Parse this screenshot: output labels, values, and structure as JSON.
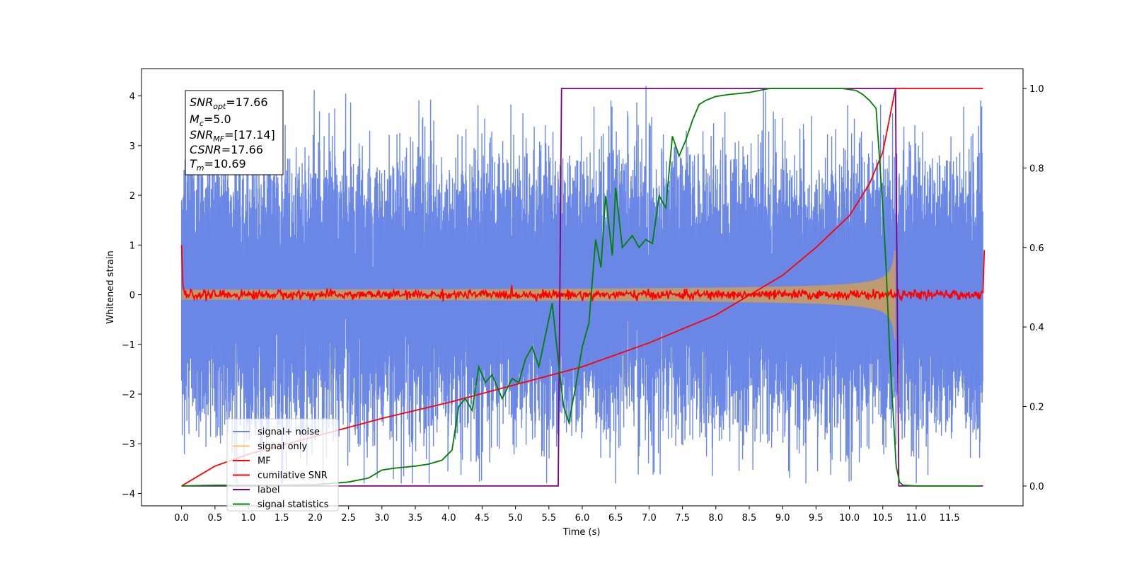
{
  "chart_data": {
    "type": "line",
    "xlabel": "Time (s)",
    "ylabel": "Whitened strain",
    "ylabel_right": "",
    "xlim": [
      -0.6,
      12.6
    ],
    "ylim": [
      -4.25,
      4.55
    ],
    "ylim_right": [
      -0.05,
      1.05
    ],
    "x_ticks": [
      "0.0",
      "0.5",
      "1.0",
      "1.5",
      "2.0",
      "2.5",
      "3.0",
      "3.5",
      "4.0",
      "4.5",
      "5.0",
      "5.5",
      "6.0",
      "6.5",
      "7.0",
      "7.5",
      "8.0",
      "8.5",
      "9.0",
      "9.5",
      "10.0",
      "10.5",
      "11.0",
      "11.5"
    ],
    "y_ticks": [
      "4",
      "3",
      "2",
      "1",
      "0",
      "−1",
      "−2",
      "−3",
      "−4"
    ],
    "y_ticks_right": [
      "1.0",
      "0.8",
      "0.6",
      "0.4",
      "0.2",
      "0.0"
    ],
    "grid": false,
    "legend_position": "lower-left",
    "annotation": {
      "snr_opt": {
        "name": "SNR",
        "sub": "opt",
        "value": "=17.66"
      },
      "mc": {
        "name": "M",
        "sub": "c",
        "value": "=5.0"
      },
      "snr_mf": {
        "name": "SNR",
        "sub": "MF",
        "value": "=[17.14]"
      },
      "csnr": {
        "name": "CSNR",
        "value": "=17.66"
      },
      "tm": {
        "name": "T",
        "sub": "m",
        "value": "=10.69"
      }
    },
    "series": [
      {
        "name": "signal+ noise",
        "color": "#6a87e6",
        "axis": "left",
        "noise_envelope": {
          "x": [
            0,
            12
          ],
          "typical_abs": 1.6,
          "peak_max": 4.2,
          "peak_min": -3.8
        }
      },
      {
        "name": "signal only",
        "color": "#ffc266",
        "axis": "left",
        "chirp": {
          "start": 0,
          "merger": 10.69,
          "amp_start": 0.05,
          "amp_merger": 1.0
        }
      },
      {
        "name": "MF",
        "color": "#ff0000",
        "axis": "left",
        "x": [
          0.0,
          0.02,
          0.05,
          0.1,
          12.0,
          12.02
        ],
        "y": [
          1.0,
          0.2,
          0.05,
          0.0,
          0.0,
          0.9
        ]
      },
      {
        "name": "cumilative SNR",
        "color": "#ff0000",
        "axis": "right",
        "x": [
          0.0,
          0.5,
          1.0,
          2.0,
          3.0,
          4.0,
          5.0,
          6.0,
          7.0,
          8.0,
          9.0,
          9.5,
          10.0,
          10.3,
          10.5,
          10.69,
          10.7,
          12.0
        ],
        "y": [
          0.0,
          0.05,
          0.08,
          0.125,
          0.17,
          0.21,
          0.255,
          0.3,
          0.36,
          0.43,
          0.53,
          0.6,
          0.68,
          0.76,
          0.84,
          1.0,
          1.0,
          1.0
        ]
      },
      {
        "name": "label",
        "color": "#800080",
        "axis": "right",
        "x": [
          0.0,
          5.64,
          5.69,
          10.69,
          10.74,
          12.0
        ],
        "y": [
          0.0,
          0.0,
          1.0,
          1.0,
          0.0,
          0.0
        ]
      },
      {
        "name": "signal statistics",
        "color": "#008000",
        "axis": "right",
        "x": [
          0.0,
          0.5,
          1.0,
          1.5,
          2.0,
          2.5,
          2.8,
          3.0,
          3.2,
          3.5,
          3.7,
          3.9,
          4.05,
          4.15,
          4.25,
          4.35,
          4.45,
          4.55,
          4.65,
          4.8,
          4.95,
          5.05,
          5.15,
          5.25,
          5.35,
          5.45,
          5.55,
          5.65,
          5.72,
          5.8,
          5.9,
          6.0,
          6.1,
          6.2,
          6.28,
          6.35,
          6.45,
          6.5,
          6.6,
          6.75,
          6.85,
          6.95,
          7.05,
          7.15,
          7.25,
          7.35,
          7.45,
          7.55,
          7.65,
          7.75,
          7.85,
          8.0,
          8.2,
          8.5,
          8.8,
          9.0,
          9.3,
          9.6,
          9.9,
          10.1,
          10.2,
          10.3,
          10.4,
          10.5,
          10.55,
          10.6,
          10.65,
          10.7,
          10.75,
          10.8,
          11.0,
          11.5,
          11.95
        ],
        "y": [
          0.0,
          0.002,
          0.002,
          0.002,
          0.003,
          0.01,
          0.02,
          0.04,
          0.045,
          0.05,
          0.055,
          0.065,
          0.09,
          0.2,
          0.22,
          0.19,
          0.3,
          0.26,
          0.28,
          0.22,
          0.27,
          0.26,
          0.32,
          0.35,
          0.3,
          0.38,
          0.46,
          0.3,
          0.2,
          0.16,
          0.25,
          0.35,
          0.41,
          0.62,
          0.55,
          0.73,
          0.58,
          0.75,
          0.6,
          0.63,
          0.6,
          0.62,
          0.61,
          0.73,
          0.7,
          0.88,
          0.83,
          0.87,
          0.92,
          0.96,
          0.97,
          0.98,
          0.985,
          0.99,
          1.0,
          1.0,
          1.0,
          1.0,
          1.0,
          0.995,
          0.985,
          0.97,
          0.95,
          0.7,
          0.55,
          0.35,
          0.2,
          0.05,
          0.01,
          0.002,
          0.0,
          0.0,
          0.0
        ]
      }
    ]
  }
}
